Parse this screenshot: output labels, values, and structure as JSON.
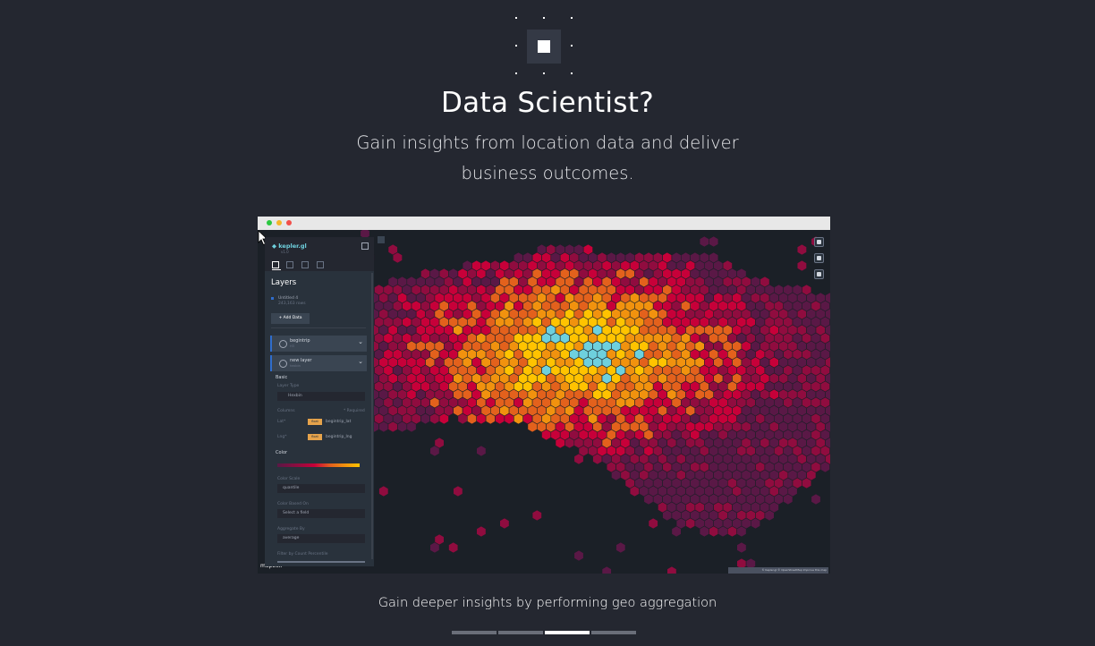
{
  "hero": {
    "icon": "square-dots-icon",
    "title": "Data Scientist?",
    "subtitle": "Gain insights from location data and deliver business outcomes."
  },
  "app": {
    "name": "kepler.gl",
    "version": "v1.0",
    "panel": {
      "title": "Layers",
      "dataset": {
        "name": "Untitled 4",
        "rows": "243,163 rows",
        "color": "#2f6dcc"
      },
      "add_data_label": "+ Add Data",
      "layers": [
        {
          "name": "begintrip",
          "sub": "H3"
        },
        {
          "name": "new layer",
          "sub": "hexbin"
        }
      ],
      "basic_label": "Basic",
      "layer_type_label": "Layer Type",
      "layer_type_value": "Hexbin",
      "columns_label": "Columns",
      "required_label": "* Required",
      "lat_label": "Lat*",
      "lng_label": "Lng*",
      "lat_tag": "float",
      "lng_tag": "float",
      "lat_value": "begintrip_lat",
      "lng_value": "begintrip_lng",
      "color_label": "Color",
      "color_scale_label": "Color Scale",
      "color_scale_value": "quantile",
      "color_based_on_label": "Color Based On",
      "color_based_on_placeholder": "Select a field",
      "aggregate_label": "Aggregate By",
      "aggregate_value": "average",
      "filter_label": "Filter by Count Percentile"
    },
    "map": {
      "mapbox_label": "mapbox",
      "attribution": "© Kepler.gl © OpenStreetMap Improve this map"
    }
  },
  "colors": {
    "background": "#242730",
    "hex_ramp": [
      "#5a1846",
      "#900c3f",
      "#c70039",
      "#e3611c",
      "#f1920e",
      "#ffc300",
      "#6ed0dd"
    ]
  },
  "caption": "Gain deeper insights by performing geo aggregation",
  "pagination": {
    "count": 4,
    "active_index": 2
  }
}
